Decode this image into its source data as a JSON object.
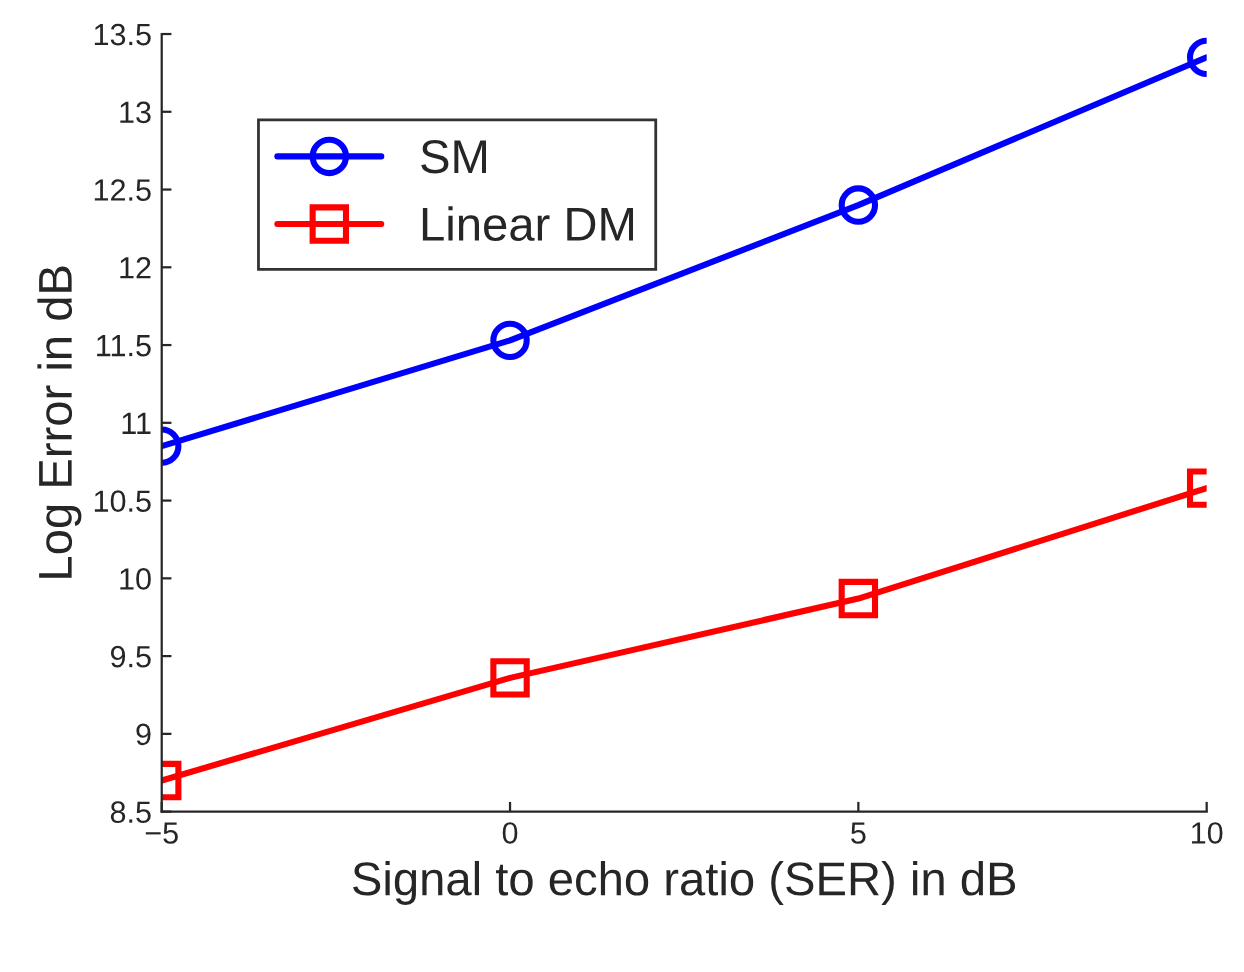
{
  "chart_data": {
    "type": "line",
    "xlabel": "Signal to echo ratio (SER) in dB",
    "ylabel": "Log Error in dB",
    "x": [
      -5,
      0,
      5,
      10
    ],
    "series": [
      {
        "name": "SM",
        "color": "#0000ff",
        "values": [
          10.85,
          11.53,
          12.4,
          13.35
        ],
        "marker": "circle"
      },
      {
        "name": "Linear DM",
        "color": "#ff0000",
        "values": [
          8.7,
          9.36,
          9.87,
          10.58
        ],
        "marker": "square"
      }
    ],
    "xlim": [
      -5,
      10
    ],
    "xticks": [
      {
        "value": -5,
        "label": "−5"
      },
      0,
      5,
      10
    ],
    "ylim": [
      8.5,
      13.5
    ],
    "yticks": [
      8.5,
      9,
      9.5,
      10,
      10.5,
      11,
      11.5,
      12,
      12.5,
      13,
      13.5
    ],
    "grid": false,
    "legend": "top left",
    "line_style": "solid"
  }
}
